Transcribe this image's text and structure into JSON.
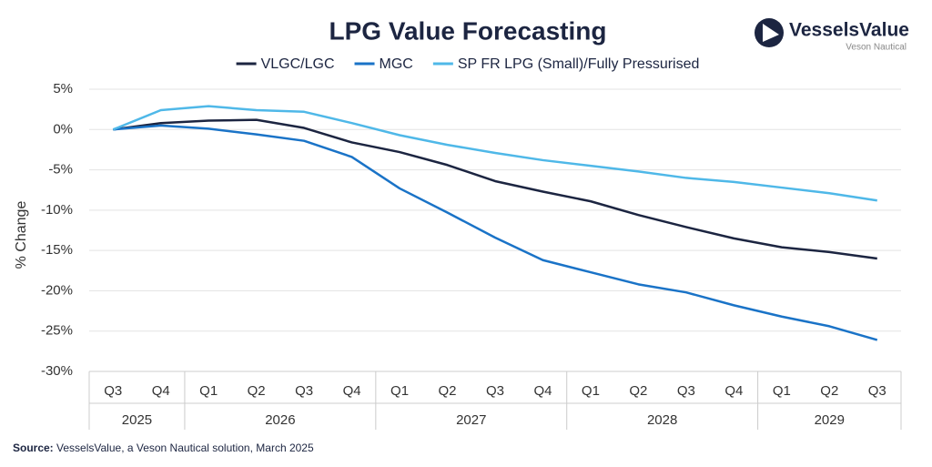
{
  "logo": {
    "name": "VesselsValue",
    "subtitle": "Veson Nautical"
  },
  "chart_data": {
    "type": "line",
    "title": "LPG Value Forecasting",
    "y_label": "% Change",
    "categories": [
      "Q3",
      "Q4",
      "Q1",
      "Q2",
      "Q3",
      "Q4",
      "Q1",
      "Q2",
      "Q3",
      "Q4",
      "Q1",
      "Q2",
      "Q3",
      "Q4",
      "Q1",
      "Q2",
      "Q3"
    ],
    "year_groups": [
      {
        "label": "2025",
        "count": 2
      },
      {
        "label": "2026",
        "count": 4
      },
      {
        "label": "2027",
        "count": 4
      },
      {
        "label": "2028",
        "count": 4
      },
      {
        "label": "2029",
        "count": 3
      }
    ],
    "series": [
      {
        "name": "VLGC/LGC",
        "color": "#1c2541",
        "values": [
          0,
          0.8,
          1.1,
          1.2,
          0.2,
          -1.6,
          -2.8,
          -4.4,
          -6.4,
          -7.7,
          -8.9,
          -10.6,
          -12.1,
          -13.5,
          -14.6,
          -15.2,
          -16.0
        ]
      },
      {
        "name": "MGC",
        "color": "#1a73c7",
        "values": [
          0,
          0.5,
          0.1,
          -0.6,
          -1.4,
          -3.4,
          -7.3,
          -10.3,
          -13.4,
          -16.2,
          -17.7,
          -19.2,
          -20.2,
          -21.8,
          -23.2,
          -24.4,
          -26.1
        ]
      },
      {
        "name": "SP FR LPG (Small)/Fully Pressurised",
        "color": "#4fb8e8",
        "values": [
          0,
          2.4,
          2.9,
          2.4,
          2.2,
          0.8,
          -0.7,
          -1.9,
          -2.9,
          -3.8,
          -4.5,
          -5.2,
          -6.0,
          -6.5,
          -7.2,
          -7.9,
          -8.8
        ]
      }
    ],
    "ylim": [
      -30,
      5
    ],
    "yticks": [
      {
        "value": 5,
        "label": "5%"
      },
      {
        "value": 0,
        "label": "0%"
      },
      {
        "value": -5,
        "label": "-5%"
      },
      {
        "value": -10,
        "label": "-10%"
      },
      {
        "value": -15,
        "label": "-15%"
      },
      {
        "value": -20,
        "label": "-20%"
      },
      {
        "value": -25,
        "label": "-25%"
      },
      {
        "value": -30,
        "label": "-30%"
      }
    ],
    "grid": true,
    "source_label": "Source:",
    "source_text": "VesselsValue, a Veson Nautical solution, March 2025"
  }
}
